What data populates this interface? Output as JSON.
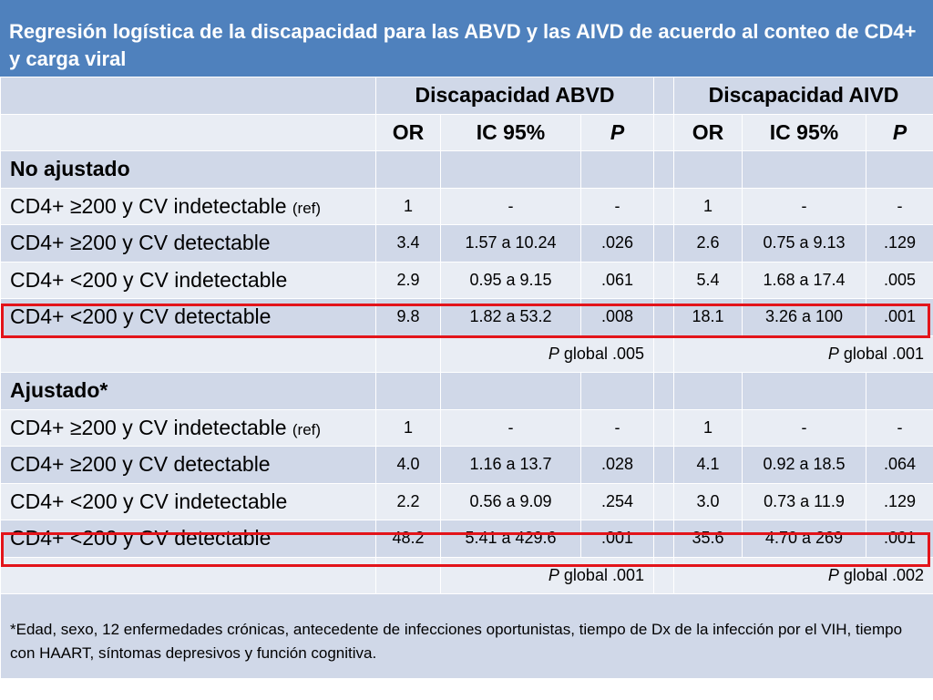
{
  "title": "Regresión logística de la discapacidad para las ABVD y las AIVD de acuerdo al conteo de CD4+ y carga viral",
  "groups": {
    "abvd": "Discapacidad ABVD",
    "aivd": "Discapacidad AIVD"
  },
  "subheaders": {
    "or": "OR",
    "ic": "IC 95%",
    "p": "P"
  },
  "sections": {
    "unadjusted": {
      "label": "No ajustado",
      "rows": [
        {
          "label": "CD4+ ≥200 y CV indetectable",
          "ref": "(ref)",
          "abvd": [
            "1",
            "-",
            "-"
          ],
          "aivd": [
            "1",
            "-",
            "-"
          ]
        },
        {
          "label": "CD4+ ≥200 y CV detectable",
          "abvd": [
            "3.4",
            "1.57 a 10.24",
            ".026"
          ],
          "aivd": [
            "2.6",
            "0.75 a 9.13",
            ".129"
          ]
        },
        {
          "label": "CD4+ <200 y CV indetectable",
          "abvd": [
            "2.9",
            "0.95 a 9.15",
            ".061"
          ],
          "aivd": [
            "5.4",
            "1.68 a 17.4",
            ".005"
          ]
        },
        {
          "label": "CD4+ <200 y CV detectable",
          "abvd": [
            "9.8",
            "1.82 a 53.2",
            ".008"
          ],
          "aivd": [
            "18.1",
            "3.26 a 100",
            ".001"
          ]
        }
      ],
      "global_abvd": ".005",
      "global_aivd": ".001"
    },
    "adjusted": {
      "label": "Ajustado*",
      "rows": [
        {
          "label": "CD4+ ≥200 y CV indetectable",
          "ref": "(ref)",
          "abvd": [
            "1",
            "-",
            "-"
          ],
          "aivd": [
            "1",
            "-",
            "-"
          ]
        },
        {
          "label": "CD4+ ≥200 y CV detectable",
          "abvd": [
            "4.0",
            "1.16 a 13.7",
            ".028"
          ],
          "aivd": [
            "4.1",
            "0.92 a 18.5",
            ".064"
          ]
        },
        {
          "label": "CD4+ <200 y CV indetectable",
          "abvd": [
            "2.2",
            "0.56 a 9.09",
            ".254"
          ],
          "aivd": [
            "3.0",
            "0.73 a 11.9",
            ".129"
          ]
        },
        {
          "label": "CD4+ <200 y CV detectable",
          "abvd": [
            "48.2",
            "5.41 a 429.6",
            ".001"
          ],
          "aivd": [
            "35.6",
            "4.70 a 269",
            ".001"
          ]
        }
      ],
      "global_abvd": ".001",
      "global_aivd": ".002"
    }
  },
  "global_label": "P",
  "global_word": "global",
  "footnote": "*Edad, sexo, 12 enfermedades crónicas, antecedente de infecciones oportunistas, tiempo de Dx de la infección por el VIH, tiempo con HAART, síntomas depresivos y función cognitiva.",
  "colors": {
    "title_bg": "#4f81bd",
    "band_dark": "#d0d8e8",
    "band_light": "#e9edf4",
    "highlight": "#e3141a"
  }
}
